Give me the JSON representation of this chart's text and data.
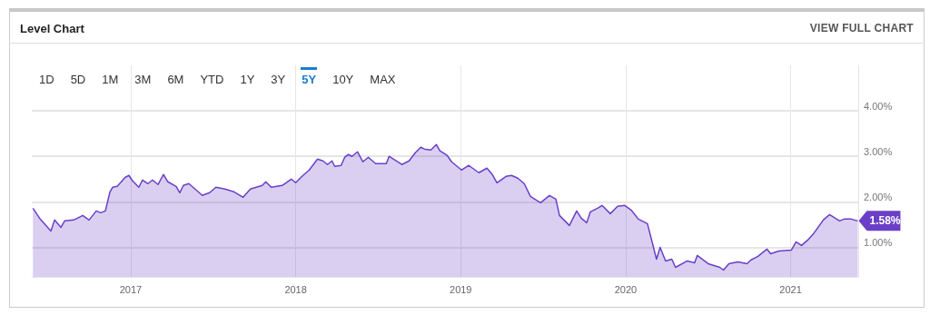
{
  "chart_data": {
    "type": "area",
    "title": "Level Chart",
    "annotations": [
      "VIEW FULL CHART",
      "1D",
      "5D",
      "1M",
      "3M",
      "6M",
      "YTD",
      "1Y",
      "3Y",
      "5Y",
      "10Y",
      "MAX",
      {
        "text": "1.58%",
        "x": 2021.407,
        "y": 1.58
      }
    ],
    "x": [
      2016.407,
      2016.451,
      2016.516,
      2016.538,
      2016.577,
      2016.599,
      2016.654,
      2016.709,
      2016.747,
      2016.791,
      2016.819,
      2016.846,
      2016.874,
      2016.89,
      2016.918,
      2016.967,
      2016.989,
      2017.011,
      2017.049,
      2017.071,
      2017.104,
      2017.132,
      2017.165,
      2017.198,
      2017.225,
      2017.275,
      2017.297,
      2017.319,
      2017.352,
      2017.434,
      2017.478,
      2017.516,
      2017.571,
      2017.626,
      2017.681,
      2017.725,
      2017.797,
      2017.819,
      2017.852,
      2017.918,
      2017.973,
      2018.0,
      2018.038,
      2018.082,
      2018.132,
      2018.165,
      2018.192,
      2018.22,
      2018.236,
      2018.275,
      2018.297,
      2018.319,
      2018.341,
      2018.374,
      2018.407,
      2018.44,
      2018.484,
      2018.549,
      2018.566,
      2018.643,
      2018.687,
      2018.725,
      2018.758,
      2018.78,
      2018.819,
      2018.852,
      2018.874,
      2018.918,
      2018.945,
      2019.005,
      2019.049,
      2019.11,
      2019.159,
      2019.192,
      2019.22,
      2019.275,
      2019.308,
      2019.346,
      2019.385,
      2019.423,
      2019.484,
      2019.538,
      2019.577,
      2019.599,
      2019.659,
      2019.703,
      2019.731,
      2019.764,
      2019.786,
      2019.83,
      2019.857,
      2019.907,
      2019.951,
      2019.995,
      2020.033,
      2020.077,
      2020.132,
      2020.187,
      2020.209,
      2020.242,
      2020.28,
      2020.302,
      2020.374,
      2020.418,
      2020.434,
      2020.5,
      2020.571,
      2020.593,
      2020.626,
      2020.681,
      2020.736,
      2020.758,
      2020.802,
      2020.857,
      2020.879,
      2020.929,
      2021.005,
      2021.033,
      2021.066,
      2021.104,
      2021.143,
      2021.198,
      2021.236,
      2021.297,
      2021.324,
      2021.368,
      2021.407
    ],
    "series": [
      {
        "color": "#6a3fc8",
        "values": [
          1.86,
          1.62,
          1.36,
          1.6,
          1.44,
          1.58,
          1.6,
          1.7,
          1.6,
          1.8,
          1.76,
          1.8,
          2.22,
          2.32,
          2.34,
          2.54,
          2.58,
          2.46,
          2.32,
          2.48,
          2.4,
          2.48,
          2.38,
          2.6,
          2.44,
          2.34,
          2.2,
          2.36,
          2.4,
          2.14,
          2.2,
          2.32,
          2.28,
          2.22,
          2.1,
          2.28,
          2.36,
          2.44,
          2.32,
          2.36,
          2.5,
          2.42,
          2.56,
          2.7,
          2.94,
          2.9,
          2.82,
          2.9,
          2.78,
          2.8,
          2.98,
          3.04,
          3.0,
          3.1,
          2.88,
          2.98,
          2.84,
          2.84,
          3.0,
          2.82,
          2.9,
          3.08,
          3.2,
          3.16,
          3.14,
          3.26,
          3.12,
          3.02,
          2.88,
          2.7,
          2.8,
          2.64,
          2.74,
          2.6,
          2.42,
          2.56,
          2.58,
          2.52,
          2.4,
          2.12,
          1.98,
          2.14,
          2.06,
          1.7,
          1.48,
          1.8,
          1.64,
          1.54,
          1.78,
          1.86,
          1.92,
          1.74,
          1.9,
          1.92,
          1.82,
          1.62,
          1.52,
          0.74,
          1.0,
          0.7,
          0.74,
          0.56,
          0.7,
          0.66,
          0.82,
          0.64,
          0.56,
          0.5,
          0.64,
          0.68,
          0.64,
          0.72,
          0.8,
          0.96,
          0.86,
          0.92,
          0.94,
          1.12,
          1.04,
          1.16,
          1.32,
          1.6,
          1.72,
          1.58,
          1.62,
          1.62,
          1.58
        ]
      }
    ],
    "xlim": [
      2016.4,
      2021.41
    ],
    "xticks": [
      2017,
      2018,
      2019,
      2020,
      2021
    ],
    "ylim": [
      0.35,
      5.0
    ],
    "yticks": [
      {
        "value": 1,
        "label": "1.00%"
      },
      {
        "value": 2,
        "label": "2.00%"
      },
      {
        "value": 3,
        "label": "3.00%"
      },
      {
        "value": 4,
        "label": "4.00%"
      }
    ],
    "grid": true,
    "marker": "none",
    "line_style": "solid"
  }
}
